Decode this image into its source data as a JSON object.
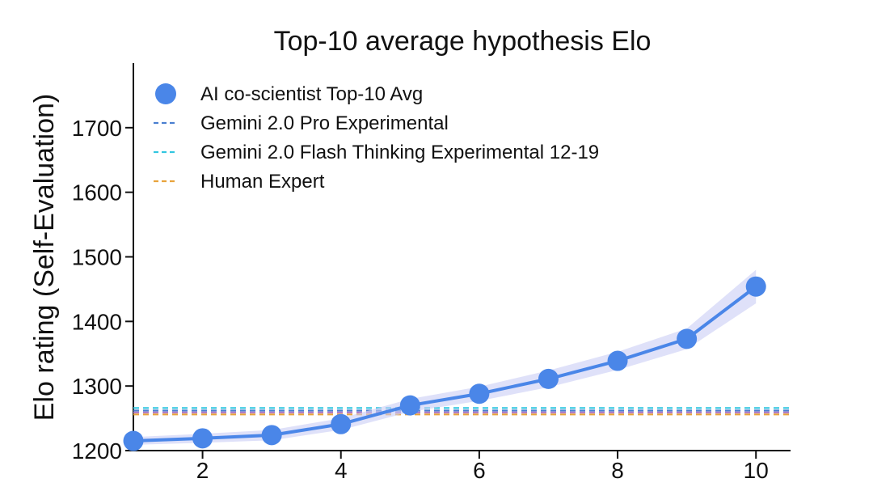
{
  "chart_data": {
    "type": "line",
    "title": "Top-10 average hypothesis Elo",
    "xlabel": "",
    "ylabel": "Elo rating (Self-Evaluation)",
    "xlim": [
      1,
      10.5
    ],
    "ylim": [
      1200,
      1800
    ],
    "xticks": [
      2,
      4,
      6,
      8,
      10
    ],
    "yticks": [
      1200,
      1300,
      1400,
      1500,
      1600,
      1700
    ],
    "grid": false,
    "legend_position": "top-left",
    "series": [
      {
        "name": "AI co-scientist Top-10 Avg",
        "kind": "line-markers-band",
        "color": "#4a86e8",
        "x": [
          1,
          2,
          3,
          4,
          5,
          6,
          7,
          8,
          9,
          10
        ],
        "y": [
          1215,
          1219,
          1224,
          1241,
          1270,
          1288,
          1311,
          1339,
          1373,
          1454
        ],
        "band_low": [
          1209,
          1212,
          1216,
          1232,
          1260,
          1277,
          1298,
          1325,
          1357,
          1428
        ],
        "band_high": [
          1221,
          1226,
          1232,
          1250,
          1280,
          1299,
          1324,
          1353,
          1389,
          1480
        ]
      },
      {
        "name": "Gemini 2.0 Pro Experimental",
        "kind": "hline",
        "color": "#4a7fd0",
        "y": 1262
      },
      {
        "name": "Gemini 2.0 Flash Thinking Experimental 12-19",
        "kind": "hline",
        "color": "#33c6e0",
        "y": 1266
      },
      {
        "name": "Human Expert",
        "kind": "hline",
        "color": "#e8a33c",
        "y": 1256
      }
    ],
    "extra_hlines": [
      {
        "color": "#b07cc6",
        "y": 1259
      }
    ]
  }
}
